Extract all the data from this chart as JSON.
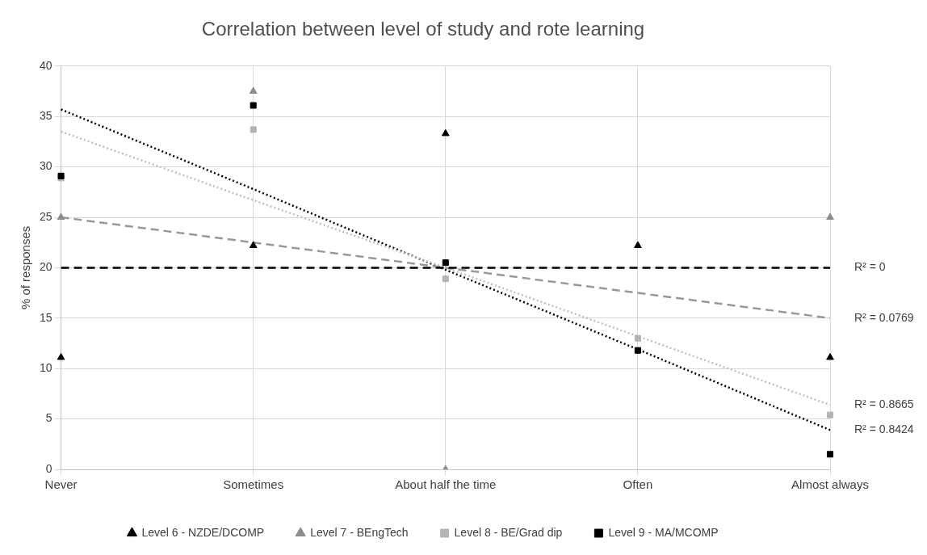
{
  "chart_data": {
    "type": "scatter",
    "title": "Correlation between level of study and rote learning",
    "ylabel": "% of responses",
    "categories": [
      "Never",
      "Sometimes",
      "About half the time",
      "Often",
      "Almost always"
    ],
    "ylim": [
      0,
      40
    ],
    "yticks": [
      0,
      5,
      10,
      15,
      20,
      25,
      30,
      35,
      40
    ],
    "grid": true,
    "legend": "bottom",
    "series": [
      {
        "name": "Level 6 - NZDE/DCOMP",
        "type": "scatter",
        "marker": "triangle",
        "color": "#000000",
        "values": [
          11.1,
          22.2,
          33.3,
          22.2,
          11.1
        ]
      },
      {
        "name": "Level 7 - BEngTech",
        "type": "scatter",
        "marker": "triangle",
        "color": "#8c8c8c",
        "values": [
          25,
          37.5,
          0,
          null,
          25
        ]
      },
      {
        "name": "Level 8 - BE/Grad dip",
        "type": "scatter",
        "marker": "square",
        "color": "#b4b4b4",
        "values": [
          28.9,
          33.7,
          18.9,
          13.0,
          5.4
        ]
      },
      {
        "name": "Level 9 - MA/MCOMP",
        "type": "scatter",
        "marker": "square",
        "color": "#000000",
        "values": [
          29.1,
          36.1,
          20.5,
          11.8,
          1.5
        ]
      },
      {
        "type": "line",
        "marker": "none",
        "line_style": "dashed",
        "color": "#000000",
        "values": [
          20,
          20,
          20,
          20,
          20
        ]
      },
      {
        "type": "line",
        "marker": "none",
        "line_style": "dashed",
        "color": "#999999",
        "values": [
          25,
          22.5,
          20,
          17.5,
          15
        ]
      },
      {
        "type": "line",
        "marker": "none",
        "line_style": "dotted",
        "color": "#c0c0c0",
        "values": [
          33.5,
          26.7,
          20.0,
          13.2,
          6.4
        ]
      },
      {
        "type": "line",
        "marker": "none",
        "line_style": "dotted",
        "color": "#000000",
        "values": [
          35.7,
          27.8,
          19.8,
          11.9,
          3.9
        ]
      }
    ],
    "annotations": [
      "R² = 0",
      "R² = 0.0769",
      "R² = 0.8665",
      "R² = 0.8424"
    ]
  }
}
